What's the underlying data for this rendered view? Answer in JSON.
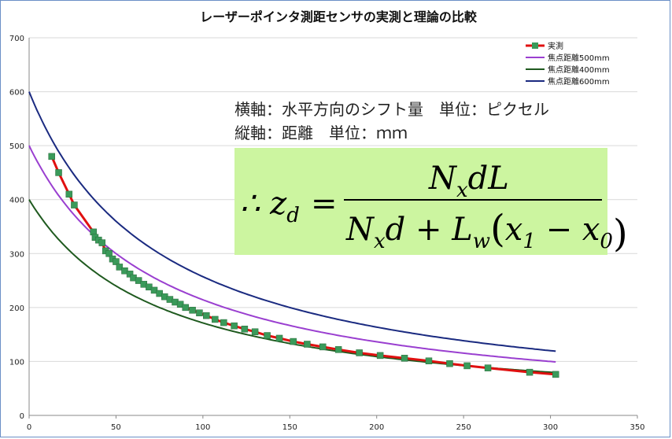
{
  "chart_data": {
    "type": "line",
    "title": "レーザーポインタ測距センサの実測と理論の比較",
    "xlabel": "",
    "ylabel": "",
    "xlim": [
      0,
      350
    ],
    "ylim": [
      0,
      700
    ],
    "x_ticks": [
      "0",
      "50",
      "100",
      "150",
      "200",
      "250",
      "300",
      "350"
    ],
    "y_ticks": [
      "0",
      "100",
      "200",
      "300",
      "400",
      "500",
      "600",
      "700"
    ],
    "grid": "horizontal",
    "legend_position": "top-right",
    "notes": [
      "横軸：水平方向のシフト量　単位：ピクセル",
      "縦軸：距離　単位：ｍｍ"
    ],
    "formula": {
      "lhs": "∴ z",
      "lhs_sub": "d",
      "eq": "=",
      "num_N": "N",
      "num_x": "x",
      "num_dL": "dL",
      "den_N": "N",
      "den_x": "x",
      "den_d": "d + L",
      "den_w": "w",
      "den_paren_open": "(",
      "den_x1": "x",
      "den_1": "1",
      "den_minus": " − x",
      "den_0": "0",
      "den_paren_close": ")"
    },
    "series": [
      {
        "name": "実測",
        "color": "#e01010",
        "marker_color": "#3a9a5a",
        "x": [
          13,
          17,
          23,
          26,
          37,
          38,
          40,
          42,
          44,
          46,
          48,
          50,
          52,
          55,
          58,
          60,
          63,
          66,
          69,
          72,
          75,
          78,
          81,
          84,
          87,
          90,
          94,
          98,
          102,
          107,
          112,
          118,
          124,
          130,
          137,
          144,
          152,
          160,
          169,
          178,
          190,
          202,
          216,
          230,
          242,
          252,
          264,
          288,
          303
        ],
        "y": [
          480,
          450,
          410,
          390,
          340,
          330,
          325,
          320,
          305,
          300,
          290,
          285,
          275,
          268,
          262,
          255,
          250,
          243,
          238,
          232,
          226,
          220,
          215,
          210,
          206,
          200,
          195,
          190,
          185,
          178,
          172,
          166,
          160,
          155,
          148,
          143,
          137,
          132,
          127,
          122,
          116,
          111,
          106,
          101,
          96,
          92,
          88,
          80,
          76
        ]
      },
      {
        "name": "焦点距離500mm",
        "color": "#9a3fd0",
        "L": 500
      },
      {
        "name": "焦点距離400mm",
        "color": "#1f5a1f",
        "L": 400
      },
      {
        "name": "焦点距離600mm",
        "color": "#1a2a80",
        "L": 600
      }
    ]
  }
}
